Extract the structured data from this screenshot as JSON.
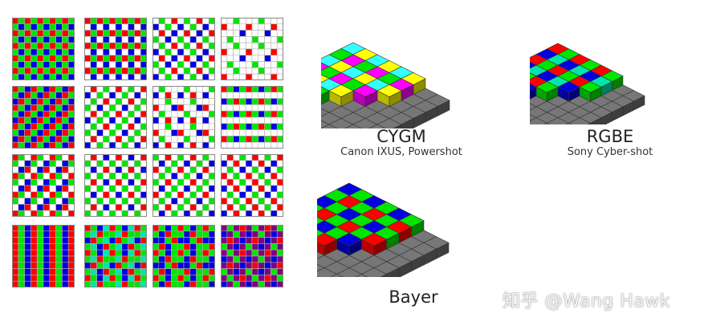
{
  "colors": {
    "red": "#ff0000",
    "green": "#00e600",
    "blue": "#0000e0",
    "white": "#ffffff",
    "cyan": "#33ffff",
    "yellow": "#ffff00",
    "magenta": "#ff00ff",
    "emerald": "#00e6aa",
    "purple": "#800080",
    "grid_line": "#b0b0b0",
    "gray_top": "#777777",
    "gray_side": "#4d4d4d"
  },
  "patterns": [
    {
      "name": "bayer-basic",
      "cells": [
        [
          "R",
          "G"
        ],
        [
          "G",
          "B"
        ]
      ]
    },
    {
      "name": "bayer-white-a",
      "cells": [
        [
          "R",
          "G"
        ],
        [
          "W",
          "B"
        ]
      ]
    },
    {
      "name": "sparse-white-rgb",
      "cells": [
        [
          "W",
          "G",
          "W",
          "R"
        ],
        [
          "B",
          "W",
          "G",
          "W"
        ],
        [
          "W",
          "R",
          "W",
          "B"
        ],
        [
          "G",
          "W",
          "B",
          "W"
        ]
      ]
    },
    {
      "name": "mostly-white-rgb",
      "cells": [
        [
          "W",
          "W",
          "G",
          "W"
        ],
        [
          "R",
          "W",
          "W",
          "W"
        ],
        [
          "W",
          "W",
          "W",
          "B"
        ],
        [
          "W",
          "G",
          "W",
          "W"
        ]
      ]
    },
    {
      "name": "diagonal-rgb",
      "cells": [
        [
          "R",
          "G",
          "B"
        ],
        [
          "G",
          "B",
          "R"
        ],
        [
          "B",
          "R",
          "G"
        ]
      ]
    },
    {
      "name": "checker-white-rgb",
      "cells": [
        [
          "W",
          "R",
          "W",
          "G"
        ],
        [
          "B",
          "W",
          "G",
          "W"
        ],
        [
          "W",
          "G",
          "W",
          "R"
        ],
        [
          "G",
          "W",
          "B",
          "W"
        ]
      ]
    },
    {
      "name": "white-dominant-rgb",
      "cells": [
        [
          "W",
          "G",
          "W",
          "W"
        ],
        [
          "B",
          "W",
          "R",
          "W"
        ],
        [
          "W",
          "W",
          "G",
          "W"
        ],
        [
          "R",
          "W",
          "W",
          "B"
        ]
      ]
    },
    {
      "name": "row-stripes-rgbw",
      "cells": [
        [
          "R",
          "G",
          "B",
          "G"
        ],
        [
          "W",
          "W",
          "W",
          "W"
        ],
        [
          "B",
          "G",
          "R",
          "G"
        ],
        [
          "W",
          "W",
          "W",
          "W"
        ]
      ]
    },
    {
      "name": "diagonal-white-rgb",
      "cells": [
        [
          "R",
          "G",
          "W"
        ],
        [
          "G",
          "W",
          "B"
        ],
        [
          "W",
          "B",
          "R"
        ]
      ]
    },
    {
      "name": "white-checker-mixed",
      "cells": [
        [
          "W",
          "R",
          "W",
          "B"
        ],
        [
          "G",
          "W",
          "G",
          "W"
        ],
        [
          "W",
          "B",
          "W",
          "R"
        ],
        [
          "G",
          "W",
          "G",
          "W"
        ]
      ]
    },
    {
      "name": "green-checker-white",
      "cells": [
        [
          "G",
          "W",
          "R",
          "W"
        ],
        [
          "W",
          "B",
          "W",
          "G"
        ],
        [
          "R",
          "W",
          "G",
          "W"
        ],
        [
          "W",
          "G",
          "W",
          "B"
        ]
      ]
    },
    {
      "name": "quad-white-rgb",
      "cells": [
        [
          "W",
          "R",
          "W",
          "G"
        ],
        [
          "B",
          "W",
          "R",
          "W"
        ],
        [
          "W",
          "G",
          "W",
          "B"
        ],
        [
          "R",
          "W",
          "G",
          "W"
        ]
      ]
    },
    {
      "name": "vertical-stripes-rgb",
      "cells": [
        [
          "R",
          "G",
          "B"
        ],
        [
          "R",
          "G",
          "B"
        ]
      ]
    },
    {
      "name": "rgb-emerald",
      "cells": [
        [
          "R",
          "G",
          "B",
          "E"
        ],
        [
          "G",
          "E",
          "R",
          "G"
        ],
        [
          "B",
          "R",
          "G",
          "E"
        ],
        [
          "G",
          "E",
          "B",
          "R"
        ]
      ]
    },
    {
      "name": "rgb-stripe-blocks",
      "cells": [
        [
          "R",
          "G",
          "B",
          "G"
        ],
        [
          "G",
          "B",
          "R",
          "G"
        ],
        [
          "B",
          "B",
          "G",
          "R"
        ],
        [
          "G",
          "R",
          "B",
          "G"
        ]
      ]
    },
    {
      "name": "purple-green-mix",
      "cells": [
        [
          "P",
          "G",
          "P",
          "R"
        ],
        [
          "B",
          "P",
          "G",
          "P"
        ],
        [
          "P",
          "R",
          "P",
          "B"
        ],
        [
          "G",
          "P",
          "B",
          "P"
        ]
      ]
    }
  ],
  "mosaics": [
    {
      "id": "cygm",
      "title": "CYGM",
      "subtitle": "Canon IXUS, Powershot",
      "cells": [
        [
          "C",
          "Y",
          "C",
          "Y",
          "C",
          "Y"
        ],
        [
          "G",
          "M",
          "G",
          "M",
          "G",
          "M"
        ],
        [
          "C",
          "Y",
          "C",
          "Y",
          "C",
          "Y"
        ],
        [
          "M",
          "G",
          "M",
          "G",
          "M",
          "G"
        ],
        [
          "C",
          "Y",
          "C",
          "Y",
          "C",
          "Y"
        ],
        [
          "G",
          "M",
          "G",
          "M",
          "G",
          "M"
        ]
      ]
    },
    {
      "id": "rgbe",
      "title": "RGBE",
      "subtitle": "Sony Cyber-shot",
      "cells": [
        [
          "R",
          "G",
          "R",
          "G",
          "R",
          "G"
        ],
        [
          "B",
          "E",
          "B",
          "E",
          "B",
          "E"
        ],
        [
          "R",
          "G",
          "R",
          "G",
          "R",
          "G"
        ],
        [
          "B",
          "E",
          "B",
          "E",
          "B",
          "E"
        ],
        [
          "R",
          "G",
          "R",
          "G",
          "R",
          "G"
        ],
        [
          "B",
          "E",
          "B",
          "E",
          "B",
          "E"
        ]
      ]
    },
    {
      "id": "bayer",
      "title": "Bayer",
      "subtitle": "",
      "cells": [
        [
          "B",
          "G",
          "B",
          "G",
          "B",
          "G"
        ],
        [
          "G",
          "R",
          "G",
          "R",
          "G",
          "R"
        ],
        [
          "B",
          "G",
          "B",
          "G",
          "B",
          "G"
        ],
        [
          "G",
          "R",
          "G",
          "R",
          "G",
          "R"
        ],
        [
          "B",
          "G",
          "B",
          "G",
          "B",
          "G"
        ],
        [
          "G",
          "R",
          "G",
          "R",
          "G",
          "R"
        ]
      ]
    }
  ],
  "watermark": "知乎 @Wang Hawk"
}
